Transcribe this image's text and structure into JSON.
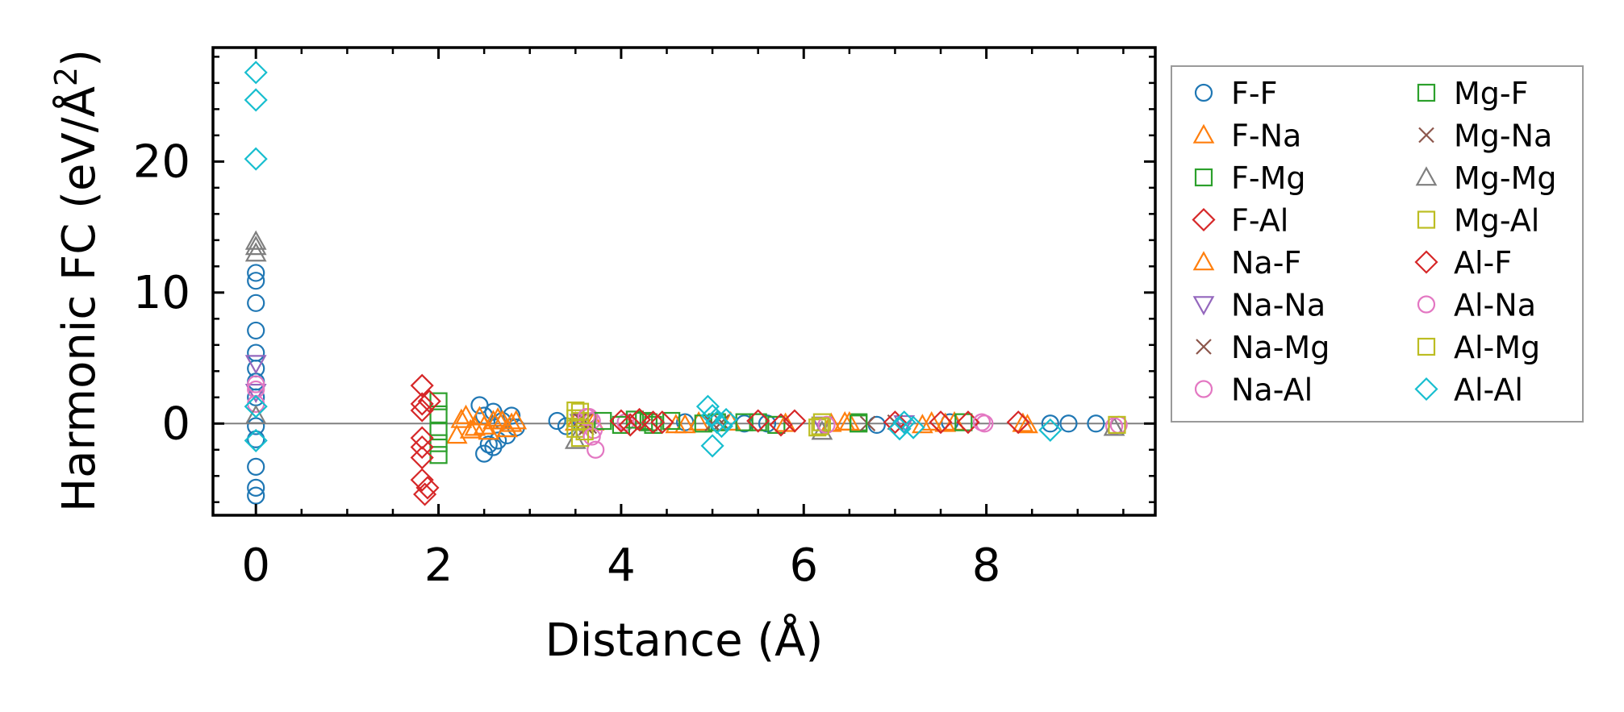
{
  "chart_data": {
    "type": "scatter",
    "title": "",
    "xlabel": "Distance (Å)",
    "ylabel_prefix": "Harmonic FC (eV/Å",
    "ylabel_sup": "2",
    "ylabel_suffix": ")",
    "xlim": [
      -0.47,
      9.85
    ],
    "ylim": [
      -7.0,
      28.7
    ],
    "xticks": [
      0,
      2,
      4,
      6,
      8
    ],
    "xtick_labels": [
      "0",
      "2",
      "4",
      "6",
      "8"
    ],
    "yticks": [
      0,
      10,
      20
    ],
    "ytick_labels": [
      "0",
      "10",
      "20"
    ],
    "reference_line_y": 0,
    "legend_position": "outside-right",
    "series": [
      {
        "name": "F-F",
        "marker": "circle",
        "color": "#1f77b4",
        "x": [
          0,
          0,
          0,
          0,
          0,
          0,
          0,
          0,
          0,
          0,
          0,
          0,
          0,
          2.45,
          2.5,
          2.55,
          2.6,
          2.65,
          2.7,
          2.75,
          2.8,
          2.85,
          2.5,
          2.6,
          3.3,
          3.4,
          4.7,
          5.35,
          5.6,
          6.8,
          7.6,
          8.7,
          8.9,
          9.2
        ],
        "y": [
          11.5,
          10.9,
          9.2,
          7.1,
          5.4,
          4.2,
          3.2,
          2.0,
          -1.2,
          -3.3,
          -4.9,
          -5.5,
          -0.2,
          1.4,
          -2.3,
          -1.6,
          0.9,
          -1.3,
          0.2,
          -0.9,
          0.6,
          -0.3,
          0.6,
          -1.8,
          0.2,
          -0.2,
          0.1,
          0,
          0,
          -0.1,
          0.1,
          0,
          0,
          0
        ]
      },
      {
        "name": "F-Na",
        "marker": "triangle-up",
        "color": "#ff7f0e",
        "x": [
          2.2,
          2.3,
          2.4,
          2.5,
          2.6,
          2.7,
          2.75,
          2.8,
          3.7,
          4.6,
          4.85,
          6.3,
          6.45,
          7.3,
          7.4,
          8.4
        ],
        "y": [
          -0.9,
          0.6,
          -0.3,
          -0.2,
          0.2,
          0.2,
          -0.4,
          0,
          0.1,
          -0.1,
          0.1,
          0,
          0.1,
          -0.1,
          0.1,
          0
        ]
      },
      {
        "name": "F-Mg",
        "marker": "square",
        "color": "#2ca02c",
        "x": [
          2.0,
          2.0,
          2.0,
          2.0,
          2.0,
          4.3,
          4.9,
          5.5,
          5.7,
          6.6
        ],
        "y": [
          1.7,
          0.7,
          -0.6,
          -1.5,
          -2.4,
          0.1,
          0,
          0.1,
          -0.1,
          0.1
        ]
      },
      {
        "name": "F-Al",
        "marker": "diamond",
        "color": "#d62728",
        "x": [
          1.82,
          1.82,
          1.82,
          1.82,
          1.82,
          1.82,
          1.82,
          1.85,
          1.88,
          1.9
        ],
        "y": [
          2.9,
          1.5,
          1.0,
          -1.1,
          -1.8,
          -2.6,
          -4.3,
          -5.4,
          -4.9,
          1.7
        ]
      },
      {
        "name": "Na-F",
        "marker": "triangle-up",
        "color": "#ff7f0e",
        "x": [
          2.25,
          2.35,
          2.45,
          2.55,
          2.65,
          2.75,
          2.85,
          3.5,
          4.7,
          5.2,
          5.8,
          6.5,
          7.55,
          7.65,
          8.45
        ],
        "y": [
          0.3,
          -0.5,
          0.5,
          -0.6,
          0.4,
          -0.4,
          0.2,
          0.1,
          -0.1,
          0.1,
          0,
          0.1,
          0,
          0.1,
          -0.1
        ]
      },
      {
        "name": "Na-Na",
        "marker": "triangle-down",
        "color": "#9467bd",
        "x": [
          0,
          0,
          3.55,
          6.2,
          7.1
        ],
        "y": [
          2.4,
          4.6,
          0.1,
          -0.1,
          0
        ]
      },
      {
        "name": "Na-Mg",
        "marker": "x",
        "color": "#8c564b",
        "x": [
          3.6,
          3.65,
          5.1,
          6.7
        ],
        "y": [
          0.2,
          -0.2,
          0.1,
          0
        ]
      },
      {
        "name": "Na-Al",
        "marker": "circle",
        "color": "#e377c2",
        "x": [
          0,
          0,
          3.65,
          3.7,
          3.72,
          3.68,
          4.05,
          7.98,
          9.4
        ],
        "y": [
          1.5,
          3.0,
          0.5,
          -0.5,
          -2.0,
          0.2,
          0.1,
          0,
          -0.2
        ]
      },
      {
        "name": "Mg-F",
        "marker": "square",
        "color": "#2ca02c",
        "x": [
          3.8,
          4.0,
          4.15,
          4.25,
          4.35,
          4.55,
          5.05,
          5.35,
          6.6,
          7.75
        ],
        "y": [
          0.2,
          -0.1,
          0.3,
          0.2,
          -0.1,
          0.2,
          0.1,
          0.1,
          0,
          0.1
        ]
      },
      {
        "name": "Mg-Na",
        "marker": "x",
        "color": "#8c564b",
        "x": [
          3.55,
          3.62,
          5.0,
          7.0
        ],
        "y": [
          0.3,
          -0.3,
          0,
          0.1
        ]
      },
      {
        "name": "Mg-Mg",
        "marker": "triangle-up",
        "color": "#7f7f7f",
        "x": [
          0,
          0,
          0,
          0,
          3.5,
          6.2,
          9.4
        ],
        "y": [
          13.9,
          13.5,
          13.0,
          0.6,
          -1.3,
          -0.6,
          -0.3
        ]
      },
      {
        "name": "Mg-Al",
        "marker": "square",
        "color": "#bcbd22",
        "x": [
          3.5,
          3.5,
          3.5,
          3.55,
          3.55,
          6.15,
          6.2
        ],
        "y": [
          1.0,
          0.4,
          -0.4,
          -1.1,
          0.2,
          -0.3,
          0.1
        ]
      },
      {
        "name": "Al-F",
        "marker": "diamond",
        "color": "#d62728",
        "x": [
          4.0,
          4.1,
          4.2,
          4.35,
          4.45,
          5.5,
          5.75,
          5.9,
          7.0,
          7.5,
          7.8,
          8.35
        ],
        "y": [
          0.2,
          -0.1,
          0.3,
          0.1,
          0.1,
          0.2,
          -0.1,
          0.2,
          0.1,
          0.1,
          0.1,
          0.1
        ]
      },
      {
        "name": "Al-Na",
        "marker": "circle",
        "color": "#e377c2",
        "x": [
          0,
          3.62,
          3.68,
          6.25,
          7.95,
          9.45
        ],
        "y": [
          2.6,
          0.5,
          -1.0,
          -0.1,
          0.1,
          -0.1
        ]
      },
      {
        "name": "Al-Mg",
        "marker": "square",
        "color": "#bcbd22",
        "x": [
          3.55,
          3.6,
          6.18,
          9.43
        ],
        "y": [
          0.9,
          -0.6,
          -0.2,
          -0.1
        ]
      },
      {
        "name": "Al-Al",
        "marker": "diamond",
        "color": "#17becf",
        "x": [
          0,
          0,
          0,
          0,
          0,
          4.95,
          5.0,
          5.05,
          5.1,
          5.15,
          5.0,
          7.05,
          7.1,
          7.2,
          8.7
        ],
        "y": [
          26.8,
          24.7,
          20.2,
          1.3,
          -1.3,
          1.3,
          0.6,
          0.1,
          -0.2,
          0.3,
          -1.7,
          -0.4,
          0.1,
          -0.3,
          -0.5
        ]
      }
    ]
  }
}
